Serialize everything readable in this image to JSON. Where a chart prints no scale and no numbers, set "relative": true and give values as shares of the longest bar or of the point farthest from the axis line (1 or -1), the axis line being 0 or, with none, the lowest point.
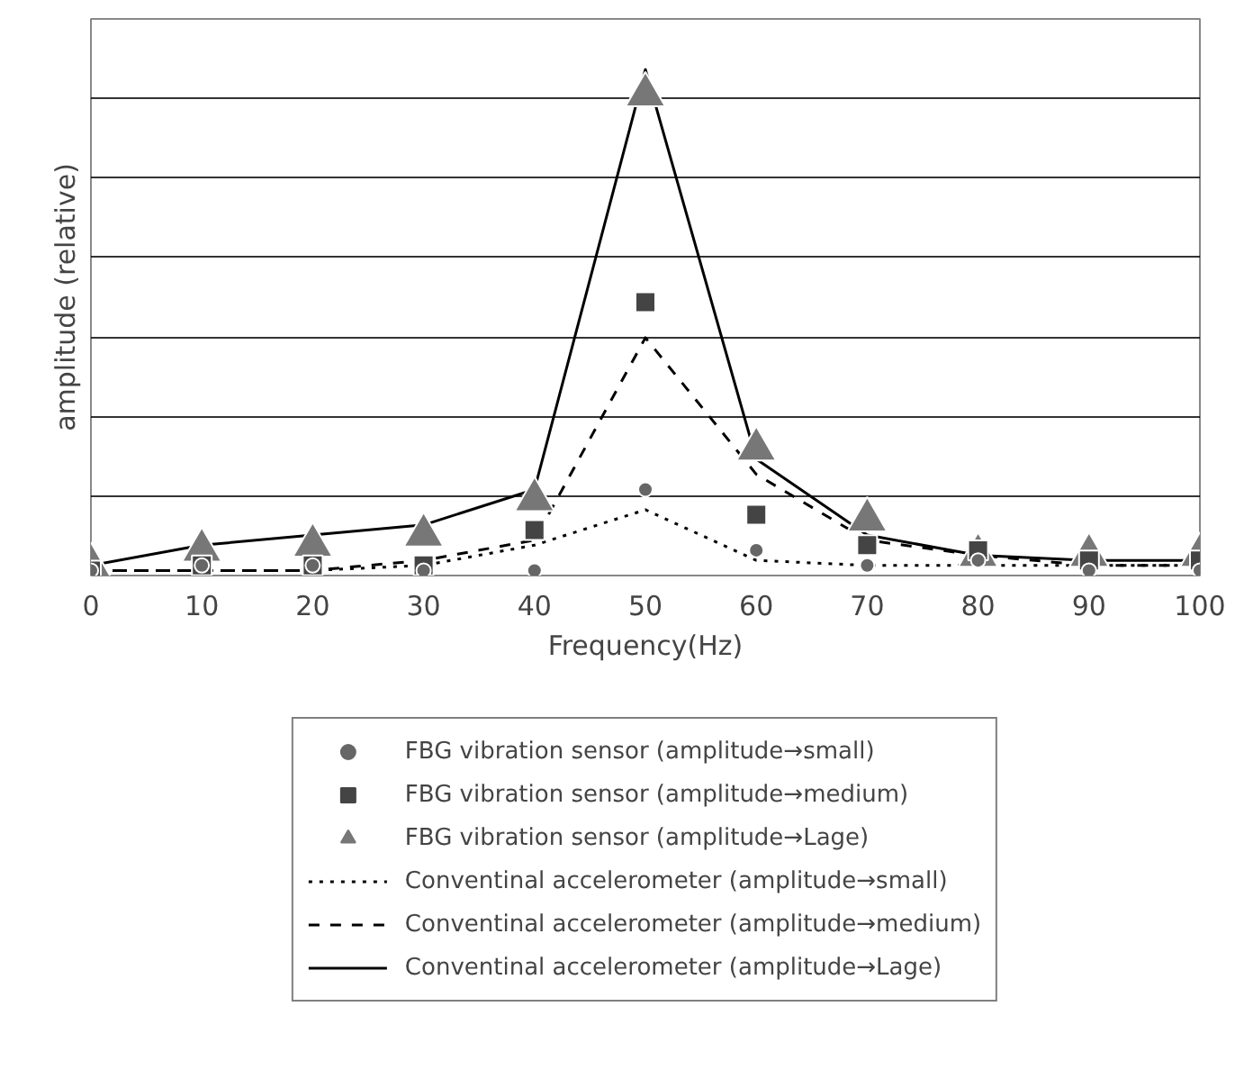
{
  "chart_data": {
    "type": "line",
    "relative": true,
    "xlabel": "Frequency(Hz)",
    "ylabel": "amplitude (relative)",
    "x": [
      0,
      10,
      20,
      30,
      40,
      50,
      60,
      70,
      80,
      90,
      100
    ],
    "xlim": [
      0,
      100
    ],
    "xticks": [
      0,
      10,
      20,
      30,
      40,
      50,
      60,
      70,
      80,
      90,
      100
    ],
    "grid": "y",
    "legend": "bottom",
    "series": [
      {
        "name": "Conventinal accelerometer (amplitude→small)",
        "line_style": "dotted",
        "color": "#000000",
        "values": [
          0.01,
          0.01,
          0.01,
          0.02,
          0.06,
          0.13,
          0.03,
          0.02,
          0.02,
          0.02,
          0.02
        ]
      },
      {
        "name": "Conventinal accelerometer (amplitude→medium)",
        "line_style": "dashed",
        "color": "#000000",
        "values": [
          0.01,
          0.01,
          0.01,
          0.03,
          0.07,
          0.47,
          0.2,
          0.07,
          0.04,
          0.02,
          0.02
        ]
      },
      {
        "name": "Conventinal accelerometer (amplitude→Lage)",
        "line_style": "solid",
        "color": "#000000",
        "values": [
          0.02,
          0.06,
          0.08,
          0.1,
          0.17,
          1.0,
          0.23,
          0.08,
          0.04,
          0.03,
          0.03
        ]
      },
      {
        "name": "FBG vibration sensor (amplitude→small)",
        "type": "scatter",
        "marker": "circle",
        "color": "#666666",
        "values": [
          0.01,
          0.02,
          0.02,
          0.01,
          0.01,
          0.17,
          0.05,
          0.02,
          0.03,
          0.01,
          0.01
        ]
      },
      {
        "name": "FBG vibration sensor (amplitude→medium)",
        "type": "scatter",
        "marker": "square",
        "color": "#444444",
        "values": [
          0.01,
          0.02,
          0.02,
          0.02,
          0.09,
          0.54,
          0.12,
          0.06,
          0.05,
          0.03,
          0.03
        ]
      },
      {
        "name": "FBG vibration sensor (amplitude→Lage)",
        "type": "scatter",
        "marker": "triangle",
        "color": "#777777",
        "values": [
          0.02,
          0.05,
          0.06,
          0.08,
          0.15,
          0.95,
          0.25,
          0.11,
          0.04,
          0.04,
          0.04
        ]
      }
    ]
  }
}
